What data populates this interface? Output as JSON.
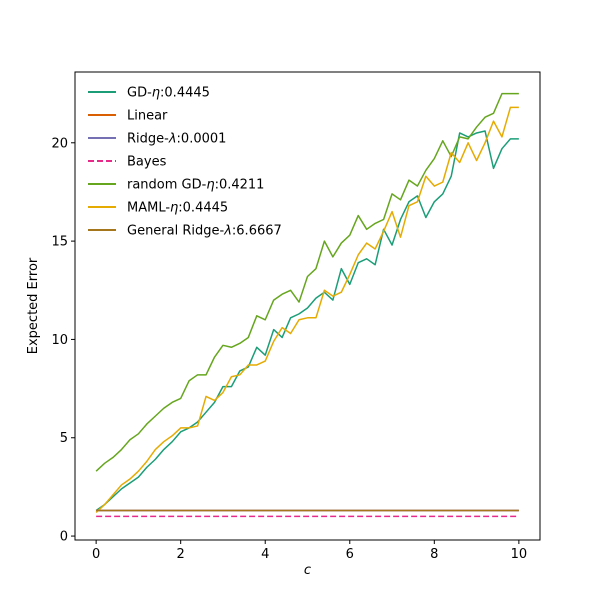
{
  "chart_data": {
    "type": "line",
    "title": "",
    "xlabel": "c",
    "ylabel": "Expected Error",
    "xlim": [
      -0.5,
      10.5
    ],
    "ylim": [
      -0.2,
      23.6
    ],
    "xticks": [
      0,
      2,
      4,
      6,
      8,
      10
    ],
    "yticks": [
      0,
      5,
      10,
      15,
      20
    ],
    "grid": false,
    "legend_position": "top-left",
    "x": [
      0,
      0.2,
      0.4,
      0.6,
      0.8,
      1.0,
      1.2,
      1.4,
      1.6,
      1.8,
      2.0,
      2.2,
      2.4,
      2.6,
      2.8,
      3.0,
      3.2,
      3.4,
      3.6,
      3.8,
      4.0,
      4.2,
      4.4,
      4.6,
      4.8,
      5.0,
      5.2,
      5.4,
      5.6,
      5.8,
      6.0,
      6.2,
      6.4,
      6.6,
      6.8,
      7.0,
      7.2,
      7.4,
      7.6,
      7.8,
      8.0,
      8.2,
      8.4,
      8.6,
      8.8,
      9.0,
      9.2,
      9.4,
      9.6,
      9.8,
      10.0
    ],
    "series": [
      {
        "name": "GD-η:0.4445",
        "label_prefix": "GD-",
        "label_symbol": "η",
        "label_suffix": ":0.4445",
        "color": "#1b9e77",
        "dash": "solid",
        "values": [
          1.3,
          1.6,
          2.0,
          2.4,
          2.7,
          3.0,
          3.5,
          3.9,
          4.4,
          4.8,
          5.3,
          5.5,
          5.8,
          6.3,
          6.8,
          7.6,
          7.6,
          8.4,
          8.6,
          9.6,
          9.2,
          10.5,
          10.1,
          11.1,
          11.3,
          11.6,
          12.1,
          12.4,
          12.0,
          13.6,
          12.8,
          13.9,
          14.1,
          13.8,
          15.6,
          14.8,
          16.1,
          17.0,
          17.3,
          16.2,
          17.0,
          17.4,
          18.3,
          20.5,
          20.3,
          20.5,
          20.6,
          18.7,
          19.7,
          20.2,
          20.2
        ]
      },
      {
        "name": "Linear",
        "color": "#d95f02",
        "dash": "solid",
        "values": [
          1.3,
          1.3,
          1.3,
          1.3,
          1.3,
          1.3,
          1.3,
          1.3,
          1.3,
          1.3,
          1.3,
          1.3,
          1.3,
          1.3,
          1.3,
          1.3,
          1.3,
          1.3,
          1.3,
          1.3,
          1.3,
          1.3,
          1.3,
          1.3,
          1.3,
          1.3,
          1.3,
          1.3,
          1.3,
          1.3,
          1.3,
          1.3,
          1.3,
          1.3,
          1.3,
          1.3,
          1.3,
          1.3,
          1.3,
          1.3,
          1.3,
          1.3,
          1.3,
          1.3,
          1.3,
          1.3,
          1.3,
          1.3,
          1.3,
          1.3,
          1.3
        ]
      },
      {
        "name": "Ridge-λ:0.0001",
        "label_prefix": "Ridge-",
        "label_symbol": "λ",
        "label_suffix": ":0.0001",
        "color": "#7570b3",
        "dash": "solid",
        "values": [
          1.3,
          1.3,
          1.3,
          1.3,
          1.3,
          1.3,
          1.3,
          1.3,
          1.3,
          1.3,
          1.3,
          1.3,
          1.3,
          1.3,
          1.3,
          1.3,
          1.3,
          1.3,
          1.3,
          1.3,
          1.3,
          1.3,
          1.3,
          1.3,
          1.3,
          1.3,
          1.3,
          1.3,
          1.3,
          1.3,
          1.3,
          1.3,
          1.3,
          1.3,
          1.3,
          1.3,
          1.3,
          1.3,
          1.3,
          1.3,
          1.3,
          1.3,
          1.3,
          1.3,
          1.3,
          1.3,
          1.3,
          1.3,
          1.3,
          1.3,
          1.3
        ]
      },
      {
        "name": "Bayes",
        "color": "#e7298a",
        "dash": "dashed",
        "values": [
          1.0,
          1.0,
          1.0,
          1.0,
          1.0,
          1.0,
          1.0,
          1.0,
          1.0,
          1.0,
          1.0,
          1.0,
          1.0,
          1.0,
          1.0,
          1.0,
          1.0,
          1.0,
          1.0,
          1.0,
          1.0,
          1.0,
          1.0,
          1.0,
          1.0,
          1.0,
          1.0,
          1.0,
          1.0,
          1.0,
          1.0,
          1.0,
          1.0,
          1.0,
          1.0,
          1.0,
          1.0,
          1.0,
          1.0,
          1.0,
          1.0,
          1.0,
          1.0,
          1.0,
          1.0,
          1.0,
          1.0,
          1.0,
          1.0,
          1.0,
          1.0
        ]
      },
      {
        "name": "random GD-η:0.4211",
        "label_prefix": "random GD-",
        "label_symbol": "η",
        "label_suffix": ":0.4211",
        "color": "#66a61e",
        "dash": "solid",
        "values": [
          3.3,
          3.7,
          4.0,
          4.4,
          4.9,
          5.2,
          5.7,
          6.1,
          6.5,
          6.8,
          7.0,
          7.9,
          8.2,
          8.2,
          9.1,
          9.7,
          9.6,
          9.8,
          10.1,
          11.2,
          11.0,
          12.0,
          12.3,
          12.5,
          11.9,
          13.2,
          13.6,
          15.0,
          14.2,
          14.9,
          15.3,
          16.3,
          15.6,
          15.9,
          16.1,
          17.4,
          17.1,
          18.1,
          17.8,
          18.6,
          19.2,
          20.1,
          19.3,
          20.3,
          20.2,
          20.8,
          21.3,
          21.5,
          22.5,
          22.5,
          22.5
        ]
      },
      {
        "name": "MAML-η:0.4445",
        "label_prefix": "MAML-",
        "label_symbol": "η",
        "label_suffix": ":0.4445",
        "color": "#e6ab02",
        "dash": "solid",
        "values": [
          1.2,
          1.6,
          2.1,
          2.6,
          2.9,
          3.3,
          3.8,
          4.4,
          4.8,
          5.1,
          5.5,
          5.5,
          5.6,
          7.1,
          6.9,
          7.3,
          8.1,
          8.2,
          8.7,
          8.7,
          8.9,
          9.9,
          10.6,
          10.3,
          11.0,
          11.1,
          11.1,
          12.5,
          12.2,
          12.4,
          13.3,
          14.3,
          14.9,
          14.6,
          15.5,
          16.5,
          15.2,
          16.8,
          17.0,
          18.3,
          17.8,
          18.0,
          19.5,
          19.0,
          20.0,
          19.1,
          20.0,
          21.1,
          20.3,
          21.8,
          21.8
        ]
      },
      {
        "name": "General Ridge-λ:6.6667",
        "label_prefix": "General Ridge-",
        "label_symbol": "λ",
        "label_suffix": ":6.6667",
        "color": "#a6761d",
        "dash": "solid",
        "values": [
          1.3,
          1.3,
          1.3,
          1.3,
          1.3,
          1.3,
          1.3,
          1.3,
          1.3,
          1.3,
          1.3,
          1.3,
          1.3,
          1.3,
          1.3,
          1.3,
          1.3,
          1.3,
          1.3,
          1.3,
          1.3,
          1.3,
          1.3,
          1.3,
          1.3,
          1.3,
          1.3,
          1.3,
          1.3,
          1.3,
          1.3,
          1.3,
          1.3,
          1.3,
          1.3,
          1.3,
          1.3,
          1.3,
          1.3,
          1.3,
          1.3,
          1.3,
          1.3,
          1.3,
          1.3,
          1.3,
          1.3,
          1.3,
          1.3,
          1.3,
          1.3
        ]
      }
    ]
  }
}
